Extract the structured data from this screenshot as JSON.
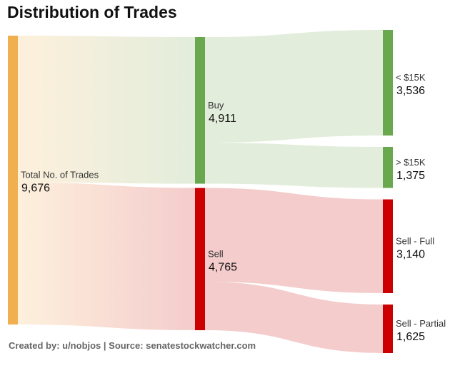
{
  "title": "Distribution of Trades",
  "footer": "Created by: u/nobjos | Source: senatestockwatcher.com",
  "chart_data": {
    "type": "sankey",
    "title": "Distribution of Trades",
    "nodes": [
      {
        "id": "total",
        "label": "Total No. of Trades",
        "value_label": "9,676",
        "value": 9676,
        "column": 0,
        "color": "#F0B050"
      },
      {
        "id": "buy",
        "label": "Buy",
        "value_label": "4,911",
        "value": 4911,
        "column": 1,
        "color": "#6AA84F"
      },
      {
        "id": "sell",
        "label": "Sell",
        "value_label": "4,765",
        "value": 4765,
        "column": 1,
        "color": "#CC0000"
      },
      {
        "id": "lt15",
        "label": "< $15K",
        "value_label": "3,536",
        "value": 3536,
        "column": 2,
        "color": "#6AA84F"
      },
      {
        "id": "gt15",
        "label": "> $15K",
        "value_label": "1,375",
        "value": 1375,
        "column": 2,
        "color": "#6AA84F"
      },
      {
        "id": "sellfull",
        "label": "Sell - Full",
        "value_label": "3,140",
        "value": 3140,
        "column": 2,
        "color": "#CC0000"
      },
      {
        "id": "sellpartial",
        "label": "Sell - Partial",
        "value_label": "1,625",
        "value": 1625,
        "column": 2,
        "color": "#CC0000"
      }
    ],
    "links": [
      {
        "source": "total",
        "target": "buy",
        "value": 4911
      },
      {
        "source": "total",
        "target": "sell",
        "value": 4765
      },
      {
        "source": "buy",
        "target": "lt15",
        "value": 3536
      },
      {
        "source": "buy",
        "target": "gt15",
        "value": 1375
      },
      {
        "source": "sell",
        "target": "sellfull",
        "value": 3140
      },
      {
        "source": "sell",
        "target": "sellpartial",
        "value": 1625
      }
    ],
    "link_colors": {
      "buy": "#E2EDDB",
      "sell": "#F4CCCC",
      "source_tint": "#FDF0DC"
    }
  }
}
